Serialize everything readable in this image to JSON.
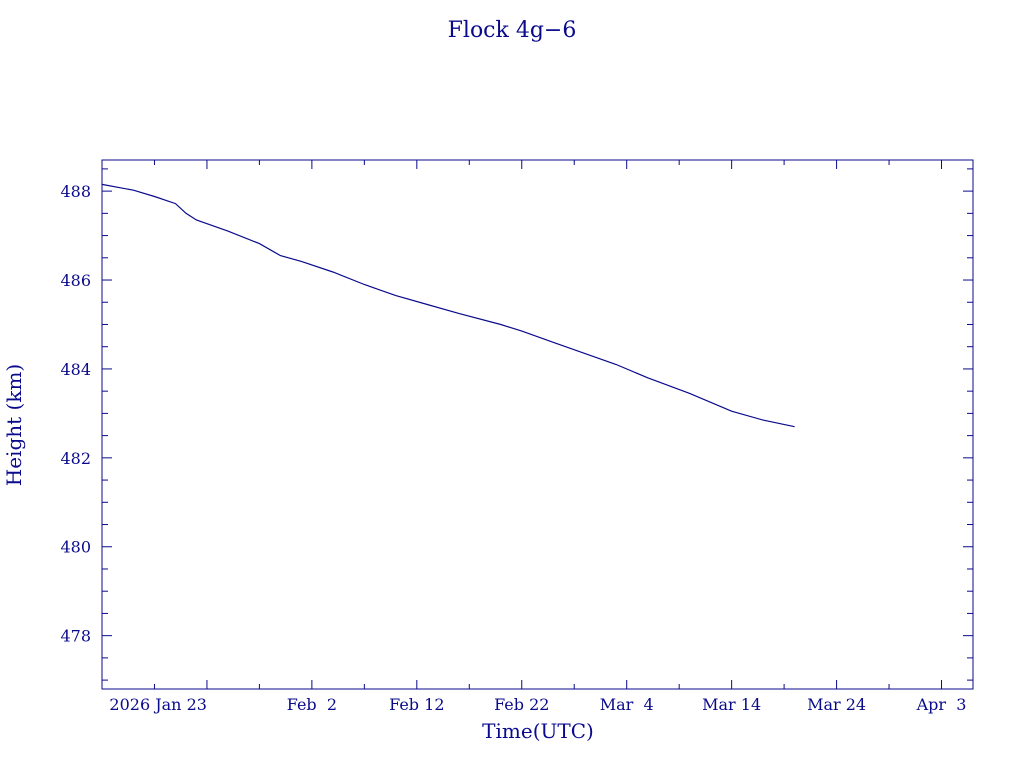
{
  "chart_data": {
    "type": "line",
    "title": "Flock 4g−6",
    "xlabel": "Time(UTC)",
    "ylabel": "Height (km)",
    "x_tick_labels": [
      "2026 Jan 23",
      "Feb  2",
      "Feb 12",
      "Feb 22",
      "Mar  4",
      "Mar 14",
      "Mar 24",
      "Apr  3"
    ],
    "x_tick_dates": [
      "2026-01-23",
      "2026-02-02",
      "2026-02-12",
      "2026-02-22",
      "2026-03-04",
      "2026-03-14",
      "2026-03-24",
      "2026-04-03"
    ],
    "xlim": [
      "2026-01-13",
      "2026-04-06"
    ],
    "y_tick_labels": [
      "478",
      "480",
      "482",
      "484",
      "486",
      "488"
    ],
    "ylim": [
      476.8,
      488.7
    ],
    "grid": false,
    "colors": {
      "axis": "#0a0a8c",
      "series": "#0a0a8c"
    },
    "series": [
      {
        "x": [
          "2026-01-13",
          "2026-01-16",
          "2026-01-18",
          "2026-01-20",
          "2026-01-21",
          "2026-01-22",
          "2026-01-25",
          "2026-01-28",
          "2026-01-30",
          "2026-02-01",
          "2026-02-04",
          "2026-02-07",
          "2026-02-10",
          "2026-02-13",
          "2026-02-16",
          "2026-02-20",
          "2026-02-22",
          "2026-02-25",
          "2026-02-28",
          "2026-03-03",
          "2026-03-06",
          "2026-03-10",
          "2026-03-14",
          "2026-03-17",
          "2026-03-20"
        ],
        "y": [
          488.15,
          488.02,
          487.88,
          487.72,
          487.5,
          487.35,
          487.1,
          486.82,
          486.55,
          486.42,
          486.18,
          485.9,
          485.65,
          485.45,
          485.25,
          485.0,
          484.85,
          484.6,
          484.35,
          484.1,
          483.8,
          483.45,
          483.05,
          482.85,
          482.7
        ]
      }
    ]
  }
}
